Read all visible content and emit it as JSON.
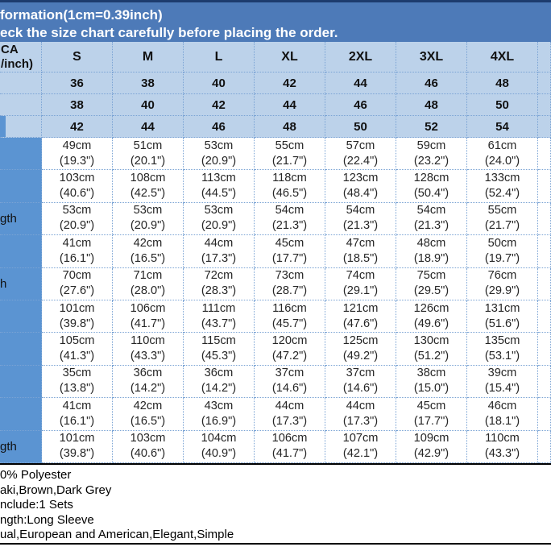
{
  "banner": {
    "line1": "formation(1cm=0.39inch)",
    "line2": "eck the size chart carefully before placing the order."
  },
  "chart_data": {
    "type": "table",
    "corner_label": {
      "line1": "CA",
      "line2": "/inch)"
    },
    "size_headers": [
      "S",
      "M",
      "L",
      "XL",
      "2XL",
      "3XL",
      "4XL"
    ],
    "size_rows": [
      [
        "36",
        "38",
        "40",
        "42",
        "44",
        "46",
        "48"
      ],
      [
        "38",
        "40",
        "42",
        "44",
        "46",
        "48",
        "50"
      ],
      [
        "42",
        "44",
        "46",
        "48",
        "50",
        "52",
        "54"
      ]
    ],
    "measure_rows": [
      {
        "label": "",
        "cells": [
          {
            "cm": "49cm",
            "in": "(19.3\")"
          },
          {
            "cm": "51cm",
            "in": "(20.1\")"
          },
          {
            "cm": "53cm",
            "in": "(20.9\")"
          },
          {
            "cm": "55cm",
            "in": "(21.7\")"
          },
          {
            "cm": "57cm",
            "in": "(22.4\")"
          },
          {
            "cm": "59cm",
            "in": "(23.2\")"
          },
          {
            "cm": "61cm",
            "in": "(24.0\")"
          }
        ]
      },
      {
        "label": "",
        "cells": [
          {
            "cm": "103cm",
            "in": "(40.6\")"
          },
          {
            "cm": "108cm",
            "in": "(42.5\")"
          },
          {
            "cm": "113cm",
            "in": "(44.5\")"
          },
          {
            "cm": "118cm",
            "in": "(46.5\")"
          },
          {
            "cm": "123cm",
            "in": "(48.4\")"
          },
          {
            "cm": "128cm",
            "in": "(50.4\")"
          },
          {
            "cm": "133cm",
            "in": "(52.4\")"
          }
        ]
      },
      {
        "label": "gth",
        "cells": [
          {
            "cm": "53cm",
            "in": "(20.9\")"
          },
          {
            "cm": "53cm",
            "in": "(20.9\")"
          },
          {
            "cm": "53cm",
            "in": "(20.9\")"
          },
          {
            "cm": "54cm",
            "in": "(21.3\")"
          },
          {
            "cm": "54cm",
            "in": "(21.3\")"
          },
          {
            "cm": "54cm",
            "in": "(21.3\")"
          },
          {
            "cm": "55cm",
            "in": "(21.7\")"
          }
        ]
      },
      {
        "label": "",
        "cells": [
          {
            "cm": "41cm",
            "in": "(16.1\")"
          },
          {
            "cm": "42cm",
            "in": "(16.5\")"
          },
          {
            "cm": "44cm",
            "in": "(17.3\")"
          },
          {
            "cm": "45cm",
            "in": "(17.7\")"
          },
          {
            "cm": "47cm",
            "in": "(18.5\")"
          },
          {
            "cm": "48cm",
            "in": "(18.9\")"
          },
          {
            "cm": "50cm",
            "in": "(19.7\")"
          }
        ]
      },
      {
        "label": "h",
        "cells": [
          {
            "cm": "70cm",
            "in": "(27.6\")"
          },
          {
            "cm": "71cm",
            "in": "(28.0\")"
          },
          {
            "cm": "72cm",
            "in": "(28.3\")"
          },
          {
            "cm": "73cm",
            "in": "(28.7\")"
          },
          {
            "cm": "74cm",
            "in": "(29.1\")"
          },
          {
            "cm": "75cm",
            "in": "(29.5\")"
          },
          {
            "cm": "76cm",
            "in": "(29.9\")"
          }
        ]
      },
      {
        "label": "",
        "cells": [
          {
            "cm": "101cm",
            "in": "(39.8\")"
          },
          {
            "cm": "106cm",
            "in": "(41.7\")"
          },
          {
            "cm": "111cm",
            "in": "(43.7\")"
          },
          {
            "cm": "116cm",
            "in": "(45.7\")"
          },
          {
            "cm": "121cm",
            "in": "(47.6\")"
          },
          {
            "cm": "126cm",
            "in": "(49.6\")"
          },
          {
            "cm": "131cm",
            "in": "(51.6\")"
          }
        ]
      },
      {
        "label": "",
        "cells": [
          {
            "cm": "105cm",
            "in": "(41.3\")"
          },
          {
            "cm": "110cm",
            "in": "(43.3\")"
          },
          {
            "cm": "115cm",
            "in": "(45.3\")"
          },
          {
            "cm": "120cm",
            "in": "(47.2\")"
          },
          {
            "cm": "125cm",
            "in": "(49.2\")"
          },
          {
            "cm": "130cm",
            "in": "(51.2\")"
          },
          {
            "cm": "135cm",
            "in": "(53.1\")"
          }
        ]
      },
      {
        "label": "",
        "cells": [
          {
            "cm": "35cm",
            "in": "(13.8\")"
          },
          {
            "cm": "36cm",
            "in": "(14.2\")"
          },
          {
            "cm": "36cm",
            "in": "(14.2\")"
          },
          {
            "cm": "37cm",
            "in": "(14.6\")"
          },
          {
            "cm": "37cm",
            "in": "(14.6\")"
          },
          {
            "cm": "38cm",
            "in": "(15.0\")"
          },
          {
            "cm": "39cm",
            "in": "(15.4\")"
          }
        ]
      },
      {
        "label": "",
        "cells": [
          {
            "cm": "41cm",
            "in": "(16.1\")"
          },
          {
            "cm": "42cm",
            "in": "(16.5\")"
          },
          {
            "cm": "43cm",
            "in": "(16.9\")"
          },
          {
            "cm": "44cm",
            "in": "(17.3\")"
          },
          {
            "cm": "44cm",
            "in": "(17.3\")"
          },
          {
            "cm": "45cm",
            "in": "(17.7\")"
          },
          {
            "cm": "46cm",
            "in": "(18.1\")"
          }
        ]
      },
      {
        "label": "gth",
        "cells": [
          {
            "cm": "101cm",
            "in": "(39.8\")"
          },
          {
            "cm": "103cm",
            "in": "(40.6\")"
          },
          {
            "cm": "104cm",
            "in": "(40.9\")"
          },
          {
            "cm": "106cm",
            "in": "(41.7\")"
          },
          {
            "cm": "107cm",
            "in": "(42.1\")"
          },
          {
            "cm": "109cm",
            "in": "(42.9\")"
          },
          {
            "cm": "110cm",
            "in": "(43.3\")"
          }
        ]
      }
    ]
  },
  "notes": {
    "lines": [
      "0% Polyester",
      "aki,Brown,Dark Grey",
      "nclude:1 Sets",
      "ngth:Long Sleeve",
      "ual,European and American,Elegant,Simple"
    ]
  },
  "colors": {
    "banner_blue": "#4d7ab8",
    "header_light_blue": "#bcd2ea",
    "label_column_blue": "#5b94d2",
    "dotted_border_blue": "#7aa3d4",
    "top_border_navy": "#1d3c6e"
  }
}
